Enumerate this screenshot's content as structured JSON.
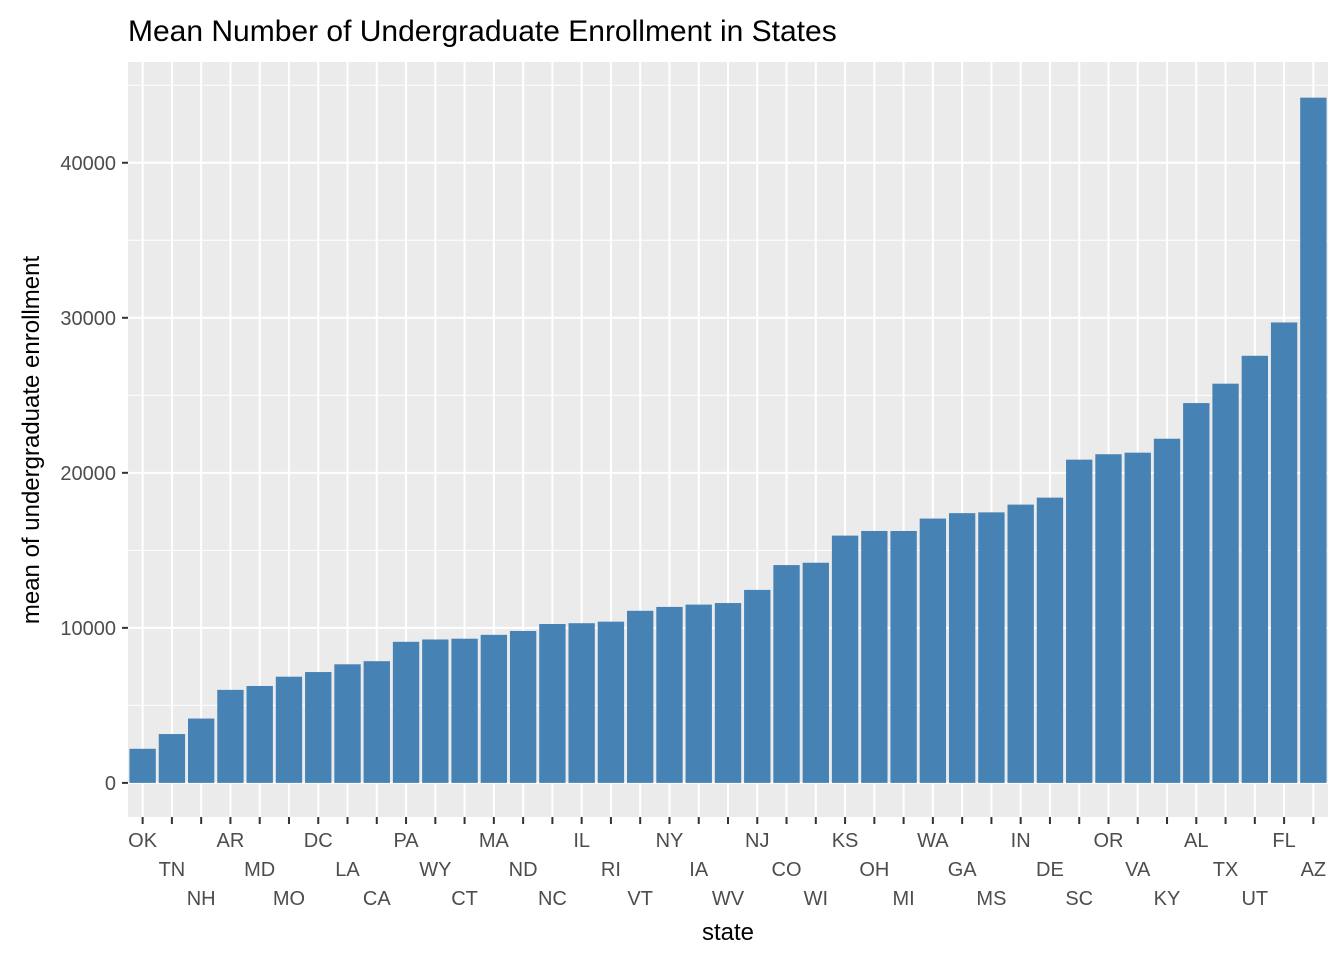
{
  "chart_data": {
    "type": "bar",
    "title": "Mean Number of Undergraduate Enrollment in States",
    "xlabel": "state",
    "ylabel": "mean of undergraduate enrollment",
    "ylim": [
      -2200,
      46500
    ],
    "yticks": [
      0,
      10000,
      20000,
      30000,
      40000
    ],
    "ytick_labels": [
      "0",
      "10000",
      "20000",
      "30000",
      "40000"
    ],
    "grid": true,
    "bar_color": "#4682b4",
    "panel_color": "#ebebeb",
    "categories": [
      "OK",
      "TN",
      "NH",
      "AR",
      "MD",
      "MO",
      "DC",
      "LA",
      "CA",
      "PA",
      "WY",
      "CT",
      "MA",
      "ND",
      "NC",
      "IL",
      "RI",
      "VT",
      "NY",
      "IA",
      "WV",
      "NJ",
      "CO",
      "WI",
      "KS",
      "OH",
      "MI",
      "WA",
      "GA",
      "MS",
      "IN",
      "DE",
      "SC",
      "OR",
      "VA",
      "KY",
      "AL",
      "TX",
      "UT",
      "FL",
      "AZ"
    ],
    "values": [
      2200,
      3150,
      4150,
      6000,
      6250,
      6850,
      7150,
      7650,
      7850,
      9100,
      9250,
      9300,
      9550,
      9800,
      10250,
      10300,
      10400,
      11100,
      11350,
      11500,
      11600,
      12450,
      14050,
      14200,
      15950,
      16250,
      16250,
      17050,
      17400,
      17450,
      17950,
      18400,
      20850,
      21200,
      21300,
      22200,
      24500,
      25750,
      27550,
      29700,
      44200
    ]
  }
}
